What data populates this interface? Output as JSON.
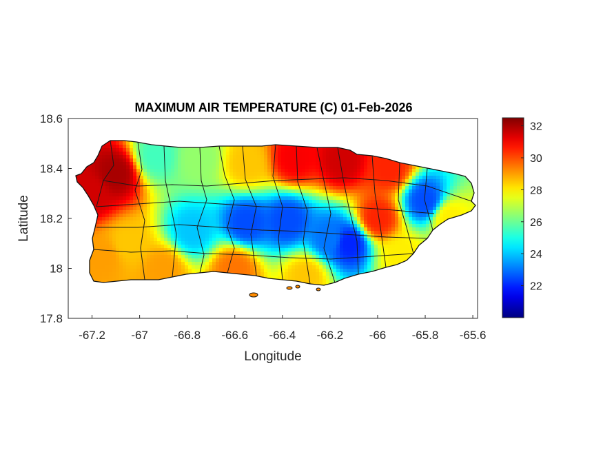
{
  "chart_data": {
    "type": "heatmap",
    "title": "MAXIMUM AIR TEMPERATURE (C) 01-Feb-2026",
    "xlabel": "Longitude",
    "ylabel": "Latitude",
    "xlim": [
      -67.3,
      -65.58
    ],
    "ylim": [
      17.8,
      18.6
    ],
    "xticks": [
      -67.2,
      -67,
      -66.8,
      -66.6,
      -66.4,
      -66.2,
      -66,
      -65.8,
      -65.6
    ],
    "xtick_labels": [
      "-67.2",
      "-67",
      "-66.8",
      "-66.6",
      "-66.4",
      "-66.2",
      "-66",
      "-65.8",
      "-65.6"
    ],
    "yticks": [
      18.6,
      18.4,
      18.2,
      18,
      17.8
    ],
    "ytick_labels": [
      "18.6",
      "18.4",
      "18.2",
      "18",
      "17.8"
    ],
    "colorbar": {
      "colormap": "jet",
      "clim": [
        20,
        32.5
      ],
      "ticks": [
        32,
        30,
        28,
        26,
        24,
        22
      ],
      "tick_labels": [
        "32",
        "30",
        "28",
        "26",
        "24",
        "22"
      ],
      "placement": "right"
    },
    "grid": false,
    "region": "Puerto Rico",
    "temperature_points": [
      {
        "lon": -67.1,
        "lat": 18.38,
        "value": 32.0
      },
      {
        "lon": -67.2,
        "lat": 18.3,
        "value": 31.5
      },
      {
        "lon": -66.93,
        "lat": 18.45,
        "value": 25.5
      },
      {
        "lon": -66.75,
        "lat": 18.44,
        "value": 26.5
      },
      {
        "lon": -66.55,
        "lat": 18.42,
        "value": 28.5
      },
      {
        "lon": -66.35,
        "lat": 18.44,
        "value": 31.0
      },
      {
        "lon": -66.15,
        "lat": 18.43,
        "value": 31.5
      },
      {
        "lon": -65.95,
        "lat": 18.4,
        "value": 30.5
      },
      {
        "lon": -65.8,
        "lat": 18.27,
        "value": 22.5
      },
      {
        "lon": -66.55,
        "lat": 18.18,
        "value": 22.5
      },
      {
        "lon": -66.38,
        "lat": 18.19,
        "value": 22.5
      },
      {
        "lon": -66.78,
        "lat": 18.15,
        "value": 24.0
      },
      {
        "lon": -66.12,
        "lat": 18.1,
        "value": 22.0
      },
      {
        "lon": -66.2,
        "lat": 18.12,
        "value": 23.0
      },
      {
        "lon": -67.05,
        "lat": 18.1,
        "value": 28.5
      },
      {
        "lon": -66.9,
        "lat": 18.0,
        "value": 29.0
      },
      {
        "lon": -66.6,
        "lat": 18.0,
        "value": 29.5
      },
      {
        "lon": -66.3,
        "lat": 17.97,
        "value": 28.5
      },
      {
        "lon": -65.9,
        "lat": 18.05,
        "value": 28.0
      },
      {
        "lon": -65.7,
        "lat": 18.2,
        "value": 28.0
      },
      {
        "lon": -66.0,
        "lat": 18.2,
        "value": 30.5
      },
      {
        "lon": -67.15,
        "lat": 18.05,
        "value": 29.0
      }
    ]
  }
}
